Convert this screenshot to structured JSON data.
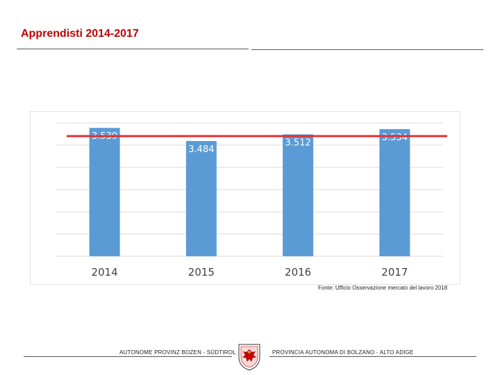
{
  "header": {
    "title": "Apprendisti 2014-2017"
  },
  "chart_data": {
    "type": "bar",
    "categories": [
      "2014",
      "2015",
      "2016",
      "2017"
    ],
    "values": [
      3539,
      3484,
      3512,
      3534
    ],
    "data_labels": [
      "3.539",
      "3.484",
      "3.512",
      "3.534"
    ],
    "title": "",
    "xlabel": "",
    "ylabel": "",
    "ylim": [
      3000,
      3560
    ],
    "grid": true,
    "bar_color": "#5b9bd5",
    "reference_line_color": "#e03030"
  },
  "source": {
    "text": "Fonte: Ufficio Osservazione mercato del lavoro 2018"
  },
  "footer": {
    "left": "AUTONOME PROVINZ BOZEN - SÜDTIROL",
    "right": "PROVINCIA AUTONOMA DI BOLZANO - ALTO ADIGE"
  }
}
